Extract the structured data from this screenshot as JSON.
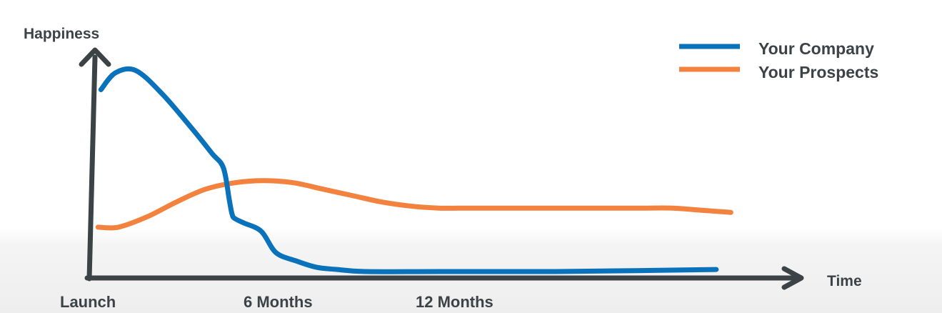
{
  "colors": {
    "axis": "#3c4346",
    "text": "#3c4346",
    "your_company": "#0a72bb",
    "your_prospects": "#f4823f",
    "background_bottom": "#eeeeee"
  },
  "chart_data": {
    "type": "line",
    "title": "",
    "xlabel": "Time",
    "ylabel": "Happiness",
    "x_axis_unit": "months",
    "xlim": [
      0,
      24
    ],
    "ylim": [
      0,
      100
    ],
    "tick_values": [
      0,
      6,
      12
    ],
    "tick_labels": [
      "Launch",
      "6 Months",
      "12 Months"
    ],
    "y_ticks_shown": false,
    "grid": false,
    "legend_position": "top-right",
    "legend": [
      "Your Company",
      "Your Prospects"
    ],
    "series": [
      {
        "name": "Your Company",
        "color": "#0a72bb",
        "x": [
          0.4,
          0.9,
          1.6,
          2.5,
          3.5,
          4.2,
          4.6,
          4.8,
          4.9,
          5.0,
          5.3,
          5.9,
          6.4,
          7.1,
          7.8,
          8.5,
          9.5,
          12,
          16,
          21.5
        ],
        "y": [
          87,
          95,
          96,
          85,
          69,
          57,
          50,
          35,
          28,
          26,
          24,
          20,
          10,
          6,
          3,
          2,
          1,
          1,
          1,
          2
        ]
      },
      {
        "name": "Your Prospects",
        "color": "#f4823f",
        "x": [
          0.3,
          1.0,
          2.0,
          3.0,
          4.0,
          5.0,
          6.0,
          7.0,
          8.0,
          9.0,
          10.0,
          11.0,
          12.0,
          13.0,
          14.0,
          15.0,
          16.0,
          17.0,
          18.0,
          19.0,
          20.0,
          21.0,
          22.0
        ],
        "y": [
          22,
          22,
          27,
          34,
          40,
          43,
          44,
          43,
          40,
          37,
          34,
          32,
          31,
          31,
          31,
          31,
          31,
          31,
          31,
          31,
          31,
          30,
          29
        ]
      }
    ]
  }
}
